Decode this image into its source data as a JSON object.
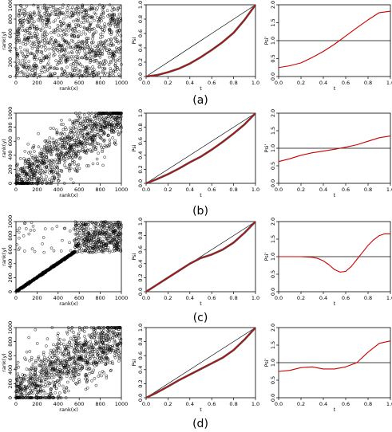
{
  "figure": {
    "row_labels": [
      "(a)",
      "(b)",
      "(c)",
      "(d)"
    ]
  },
  "chart_data": [
    {
      "row": "a",
      "col": "scatter",
      "type": "scatter",
      "xlabel": "rank(x)",
      "ylabel": "rank(y)",
      "xlim": [
        0,
        1000
      ],
      "ylim": [
        0,
        1000
      ],
      "xticks": [
        0,
        200,
        400,
        600,
        800,
        1000
      ],
      "yticks": [
        0,
        200,
        400,
        600,
        800,
        1000
      ],
      "pattern": "independent",
      "n_points": 1000
    },
    {
      "row": "a",
      "col": "psi",
      "type": "line",
      "xlabel": "t",
      "ylabel": "Psi",
      "xlim": [
        0,
        1
      ],
      "ylim": [
        0,
        1
      ],
      "xticks": [
        0.0,
        0.2,
        0.4,
        0.6,
        0.8,
        1.0
      ],
      "yticks": [
        0.0,
        0.2,
        0.4,
        0.6,
        0.8,
        1.0
      ],
      "series": [
        {
          "name": "",
          "color": "#000000",
          "x": [
            0,
            1
          ],
          "y": [
            0,
            1
          ]
        },
        {
          "name": "",
          "color": "#cc0000",
          "x": [
            0,
            0.1,
            0.2,
            0.3,
            0.4,
            0.5,
            0.6,
            0.7,
            0.8,
            0.9,
            1.0
          ],
          "y": [
            0,
            0.02,
            0.06,
            0.11,
            0.18,
            0.27,
            0.37,
            0.48,
            0.61,
            0.79,
            1.0
          ]
        }
      ]
    },
    {
      "row": "a",
      "col": "psi_prime",
      "type": "line",
      "xlabel": "t",
      "ylabel": "Psi'",
      "xlim": [
        0,
        1
      ],
      "ylim": [
        0,
        2
      ],
      "xticks": [
        0.0,
        0.2,
        0.4,
        0.6,
        0.8,
        1.0
      ],
      "yticks": [
        0.0,
        0.5,
        1.0,
        1.5,
        2.0
      ],
      "hline": 1.0,
      "series": [
        {
          "name": "",
          "color": "#cc0000",
          "x": [
            0,
            0.1,
            0.2,
            0.3,
            0.4,
            0.5,
            0.6,
            0.7,
            0.8,
            0.9,
            1.0
          ],
          "y": [
            0.25,
            0.3,
            0.38,
            0.53,
            0.7,
            0.9,
            1.13,
            1.36,
            1.58,
            1.78,
            1.82
          ]
        }
      ]
    },
    {
      "row": "b",
      "col": "scatter",
      "type": "scatter",
      "xlabel": "rank(x)",
      "ylabel": "rank(y)",
      "xlim": [
        0,
        1000
      ],
      "ylim": [
        0,
        1000
      ],
      "xticks": [
        0,
        200,
        400,
        600,
        800,
        1000
      ],
      "yticks": [
        0,
        200,
        400,
        600,
        800,
        1000
      ],
      "pattern": "positive",
      "n_points": 1000
    },
    {
      "row": "b",
      "col": "psi",
      "type": "line",
      "xlabel": "t",
      "ylabel": "Psi",
      "xlim": [
        0,
        1
      ],
      "ylim": [
        0,
        1
      ],
      "xticks": [
        0.0,
        0.2,
        0.4,
        0.6,
        0.8,
        1.0
      ],
      "yticks": [
        0.0,
        0.2,
        0.4,
        0.6,
        0.8,
        1.0
      ],
      "series": [
        {
          "name": "",
          "color": "#000000",
          "x": [
            0,
            1
          ],
          "y": [
            0,
            1
          ]
        },
        {
          "name": "",
          "color": "#cc0000",
          "x": [
            0,
            0.1,
            0.2,
            0.3,
            0.4,
            0.5,
            0.6,
            0.7,
            0.8,
            0.9,
            1.0
          ],
          "y": [
            0,
            0.06,
            0.13,
            0.21,
            0.3,
            0.38,
            0.48,
            0.59,
            0.71,
            0.84,
            1.0
          ]
        }
      ]
    },
    {
      "row": "b",
      "col": "psi_prime",
      "type": "line",
      "xlabel": "t",
      "ylabel": "Psi'",
      "xlim": [
        0,
        1
      ],
      "ylim": [
        0,
        2
      ],
      "xticks": [
        0.0,
        0.2,
        0.4,
        0.6,
        0.8,
        1.0
      ],
      "yticks": [
        0.0,
        0.5,
        1.0,
        1.5,
        2.0
      ],
      "hline": 1.0,
      "series": [
        {
          "name": "",
          "color": "#cc0000",
          "x": [
            0,
            0.1,
            0.2,
            0.3,
            0.4,
            0.5,
            0.6,
            0.7,
            0.8,
            0.9,
            1.0
          ],
          "y": [
            0.62,
            0.7,
            0.8,
            0.87,
            0.92,
            0.97,
            1.03,
            1.1,
            1.2,
            1.3,
            1.35
          ]
        }
      ]
    },
    {
      "row": "c",
      "col": "scatter",
      "type": "scatter",
      "xlabel": "rank(x)",
      "ylabel": "rank(y)",
      "xlim": [
        0,
        1000
      ],
      "ylim": [
        0,
        1000
      ],
      "xticks": [
        0,
        200,
        400,
        600,
        800,
        1000
      ],
      "yticks": [
        0,
        200,
        400,
        600,
        800,
        1000
      ],
      "pattern": "diagonal-then-upper",
      "n_points": 1000
    },
    {
      "row": "c",
      "col": "psi",
      "type": "line",
      "xlabel": "t",
      "ylabel": "Psi",
      "xlim": [
        0,
        1
      ],
      "ylim": [
        0,
        1
      ],
      "xticks": [
        0.0,
        0.2,
        0.4,
        0.6,
        0.8,
        1.0
      ],
      "yticks": [
        0.0,
        0.2,
        0.4,
        0.6,
        0.8,
        1.0
      ],
      "series": [
        {
          "name": "",
          "color": "#000000",
          "x": [
            0,
            1
          ],
          "y": [
            0,
            1
          ]
        },
        {
          "name": "",
          "color": "#cc0000",
          "x": [
            0,
            0.1,
            0.2,
            0.3,
            0.4,
            0.5,
            0.6,
            0.7,
            0.8,
            0.9,
            1.0
          ],
          "y": [
            0,
            0.1,
            0.2,
            0.3,
            0.4,
            0.48,
            0.53,
            0.6,
            0.7,
            0.84,
            1.0
          ]
        }
      ]
    },
    {
      "row": "c",
      "col": "psi_prime",
      "type": "line",
      "xlabel": "t",
      "ylabel": "Psi'",
      "xlim": [
        0,
        1
      ],
      "ylim": [
        0,
        2
      ],
      "xticks": [
        0.0,
        0.2,
        0.4,
        0.6,
        0.8,
        1.0
      ],
      "yticks": [
        0.0,
        0.5,
        1.0,
        1.5,
        2.0
      ],
      "hline": 1.0,
      "series": [
        {
          "name": "",
          "color": "#cc0000",
          "x": [
            0,
            0.1,
            0.2,
            0.3,
            0.35,
            0.4,
            0.45,
            0.5,
            0.55,
            0.6,
            0.65,
            0.7,
            0.75,
            0.8,
            0.85,
            0.9,
            0.95,
            1.0
          ],
          "y": [
            1.0,
            1.0,
            1.0,
            0.98,
            0.95,
            0.88,
            0.77,
            0.63,
            0.56,
            0.58,
            0.72,
            0.92,
            1.12,
            1.32,
            1.48,
            1.6,
            1.65,
            1.65
          ]
        }
      ]
    },
    {
      "row": "d",
      "col": "scatter",
      "type": "scatter",
      "xlabel": "rank(x)",
      "ylabel": "rank(y)",
      "xlim": [
        0,
        1000
      ],
      "ylim": [
        0,
        1000
      ],
      "xticks": [
        0,
        200,
        400,
        600,
        800,
        1000
      ],
      "yticks": [
        0,
        200,
        400,
        600,
        800,
        1000
      ],
      "pattern": "positive-noisy",
      "n_points": 1000
    },
    {
      "row": "d",
      "col": "psi",
      "type": "line",
      "xlabel": "t",
      "ylabel": "Psi",
      "xlim": [
        0,
        1
      ],
      "ylim": [
        0,
        1
      ],
      "xticks": [
        0.0,
        0.2,
        0.4,
        0.6,
        0.8,
        1.0
      ],
      "yticks": [
        0.0,
        0.2,
        0.4,
        0.6,
        0.8,
        1.0
      ],
      "series": [
        {
          "name": "",
          "color": "#000000",
          "x": [
            0,
            1
          ],
          "y": [
            0,
            1
          ]
        },
        {
          "name": "",
          "color": "#cc0000",
          "x": [
            0,
            0.1,
            0.2,
            0.3,
            0.4,
            0.5,
            0.6,
            0.7,
            0.8,
            0.9,
            1.0
          ],
          "y": [
            0,
            0.075,
            0.16,
            0.25,
            0.33,
            0.41,
            0.49,
            0.57,
            0.68,
            0.83,
            1.0
          ]
        }
      ]
    },
    {
      "row": "d",
      "col": "psi_prime",
      "type": "line",
      "xlabel": "t",
      "ylabel": "Psi'",
      "xlim": [
        0,
        1
      ],
      "ylim": [
        0,
        2
      ],
      "xticks": [
        0.0,
        0.2,
        0.4,
        0.6,
        0.8,
        1.0
      ],
      "yticks": [
        0.0,
        0.5,
        1.0,
        1.5,
        2.0
      ],
      "hline": 1.0,
      "series": [
        {
          "name": "",
          "color": "#cc0000",
          "x": [
            0,
            0.1,
            0.2,
            0.3,
            0.4,
            0.5,
            0.6,
            0.7,
            0.8,
            0.9,
            1.0
          ],
          "y": [
            0.75,
            0.78,
            0.86,
            0.88,
            0.82,
            0.82,
            0.88,
            1.0,
            1.3,
            1.55,
            1.62
          ]
        }
      ]
    }
  ]
}
